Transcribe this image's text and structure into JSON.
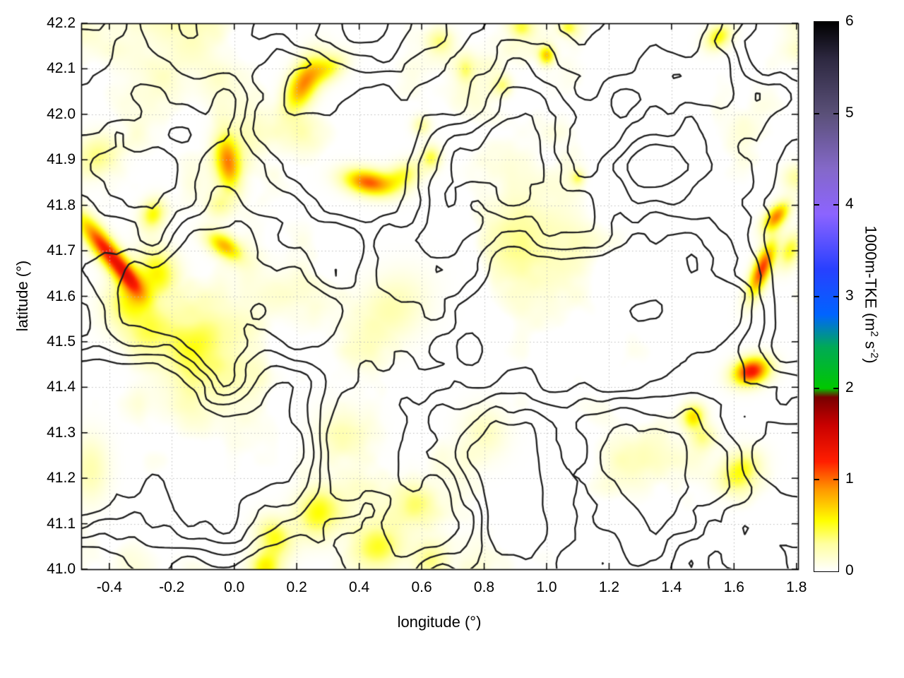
{
  "chart_data": {
    "type": "heatmap",
    "overlay": "contour",
    "title": "",
    "xlabel": "longitude (°)",
    "ylabel": "latitude (°)",
    "x_range": [
      -0.49,
      1.805
    ],
    "y_range": [
      41.0,
      42.2
    ],
    "grid": true,
    "x_tick_values": [
      -0.4,
      -0.2,
      0,
      0.2,
      0.4,
      0.6,
      0.8,
      1,
      1.2,
      1.4,
      1.6,
      1.8
    ],
    "x_tick_labels": [
      "-0.4",
      "-0.2",
      "0.0",
      "0.2",
      "0.4",
      "0.6",
      "0.8",
      "1.0",
      "1.2",
      "1.4",
      "1.6",
      "1.8"
    ],
    "y_tick_values": [
      41,
      41.1,
      41.2,
      41.3,
      41.4,
      41.5,
      41.6,
      41.7,
      41.8,
      41.9,
      42,
      42.1,
      42.2
    ],
    "y_tick_labels": [
      "41.0",
      "41.1",
      "41.2",
      "41.3",
      "41.4",
      "41.5",
      "41.6",
      "41.7",
      "41.8",
      "41.9",
      "42.0",
      "42.1",
      "42.2"
    ],
    "colorbar": {
      "label": "1000m-TKE (m² s⁻²)",
      "label_parts": {
        "prefix": "1000m-TKE (m",
        "sup1": "2",
        "mid": " s",
        "sup2": "-2",
        "suffix": ")"
      },
      "range": [
        0,
        6
      ],
      "tick_values": [
        0,
        1,
        2,
        3,
        4,
        5,
        6
      ],
      "tick_labels": [
        "0",
        "1",
        "2",
        "3",
        "4",
        "5",
        "6"
      ],
      "stops": [
        [
          0.0,
          "#ffffff"
        ],
        [
          0.3,
          "#ffffa0"
        ],
        [
          0.55,
          "#ffff00"
        ],
        [
          0.9,
          "#ff9600"
        ],
        [
          1.2,
          "#ff1e00"
        ],
        [
          1.6,
          "#c80000"
        ],
        [
          1.9,
          "#780000"
        ],
        [
          2.0,
          "#00c800"
        ],
        [
          2.45,
          "#00aa55"
        ],
        [
          2.8,
          "#0064ff"
        ],
        [
          3.3,
          "#2840ff"
        ],
        [
          3.9,
          "#8c64ff"
        ],
        [
          4.4,
          "#8468c8"
        ],
        [
          5.0,
          "#5a5078"
        ],
        [
          5.6,
          "#2d2840"
        ],
        [
          6.0,
          "#000000"
        ]
      ]
    },
    "hotspots": [
      {
        "lon": -0.415,
        "lat": 41.705,
        "amp": 1.2,
        "sx": 0.075,
        "sy": 0.02,
        "rot": -0.7
      },
      {
        "lon": -0.34,
        "lat": 41.645,
        "amp": 0.6,
        "sx": 0.045,
        "sy": 0.018,
        "rot": -0.7
      },
      {
        "lon": -0.33,
        "lat": 41.595,
        "amp": 0.55,
        "sx": 0.055,
        "sy": 0.04,
        "rot": 0.3
      },
      {
        "lon": -0.24,
        "lat": 41.655,
        "amp": 0.5,
        "sx": 0.045,
        "sy": 0.035,
        "rot": -0.5
      },
      {
        "lon": -0.28,
        "lat": 41.525,
        "amp": 0.3,
        "sx": 0.05,
        "sy": 0.035,
        "rot": 0
      },
      {
        "lon": -0.26,
        "lat": 41.78,
        "amp": 0.55,
        "sx": 0.028,
        "sy": 0.022,
        "rot": 0.4
      },
      {
        "lon": -0.44,
        "lat": 41.91,
        "amp": 0.35,
        "sx": 0.05,
        "sy": 0.03,
        "rot": 0.2
      },
      {
        "lon": -0.02,
        "lat": 41.895,
        "amp": 0.9,
        "sx": 0.028,
        "sy": 0.045,
        "rot": 0.25
      },
      {
        "lon": -0.05,
        "lat": 41.8,
        "amp": 0.3,
        "sx": 0.03,
        "sy": 0.02,
        "rot": 0
      },
      {
        "lon": -0.03,
        "lat": 41.71,
        "amp": 0.8,
        "sx": 0.042,
        "sy": 0.018,
        "rot": -0.35
      },
      {
        "lon": 0.22,
        "lat": 42.065,
        "amp": 0.9,
        "sx": 0.05,
        "sy": 0.028,
        "rot": 0.85
      },
      {
        "lon": 0.3,
        "lat": 42.1,
        "amp": 0.5,
        "sx": 0.04,
        "sy": 0.02,
        "rot": 0.3
      },
      {
        "lon": 0.43,
        "lat": 41.85,
        "amp": 1.05,
        "sx": 0.055,
        "sy": 0.019,
        "rot": -0.12
      },
      {
        "lon": 0.54,
        "lat": 41.865,
        "amp": 0.45,
        "sx": 0.04,
        "sy": 0.02,
        "rot": 0.2
      },
      {
        "lon": 0.63,
        "lat": 41.905,
        "amp": 0.45,
        "sx": 0.022,
        "sy": 0.018,
        "rot": 0
      },
      {
        "lon": 0.6,
        "lat": 41.975,
        "amp": 0.3,
        "sx": 0.02,
        "sy": 0.015,
        "rot": 0
      },
      {
        "lon": 1.0,
        "lat": 42.13,
        "amp": 0.75,
        "sx": 0.018,
        "sy": 0.015,
        "rot": 0
      },
      {
        "lon": 0.86,
        "lat": 42.065,
        "amp": 0.3,
        "sx": 0.02,
        "sy": 0.015,
        "rot": 0
      },
      {
        "lon": 1.55,
        "lat": 42.17,
        "amp": 0.55,
        "sx": 0.03,
        "sy": 0.018,
        "rot": 0.3
      },
      {
        "lon": 1.07,
        "lat": 42.19,
        "amp": 0.4,
        "sx": 0.02,
        "sy": 0.012,
        "rot": 0
      },
      {
        "lon": 0.66,
        "lat": 42.16,
        "amp": 0.35,
        "sx": 0.03,
        "sy": 0.02,
        "rot": 0
      },
      {
        "lon": 1.655,
        "lat": 41.435,
        "amp": 1.3,
        "sx": 0.04,
        "sy": 0.02,
        "rot": 0.15
      },
      {
        "lon": 1.69,
        "lat": 41.66,
        "amp": 1.15,
        "sx": 0.048,
        "sy": 0.018,
        "rot": 1.0
      },
      {
        "lon": 1.735,
        "lat": 41.775,
        "amp": 0.95,
        "sx": 0.032,
        "sy": 0.016,
        "rot": 0.55
      },
      {
        "lon": 1.78,
        "lat": 41.7,
        "amp": 0.5,
        "sx": 0.03,
        "sy": 0.02,
        "rot": 0.9
      },
      {
        "lon": 1.47,
        "lat": 41.335,
        "amp": 0.65,
        "sx": 0.025,
        "sy": 0.018,
        "rot": 0.2
      },
      {
        "lon": 1.62,
        "lat": 41.215,
        "amp": 0.55,
        "sx": 0.045,
        "sy": 0.028,
        "rot": 0.25
      },
      {
        "lon": 1.5,
        "lat": 41.29,
        "amp": 0.35,
        "sx": 0.03,
        "sy": 0.02,
        "rot": 0
      },
      {
        "lon": 0.27,
        "lat": 41.125,
        "amp": 0.55,
        "sx": 0.05,
        "sy": 0.038,
        "rot": 0.2
      },
      {
        "lon": 0.13,
        "lat": 41.07,
        "amp": 0.5,
        "sx": 0.04,
        "sy": 0.028,
        "rot": -0.3
      },
      {
        "lon": 0.1,
        "lat": 41.005,
        "amp": 0.55,
        "sx": 0.035,
        "sy": 0.025,
        "rot": 0
      },
      {
        "lon": 0.46,
        "lat": 41.05,
        "amp": 0.5,
        "sx": 0.055,
        "sy": 0.035,
        "rot": 0.1
      },
      {
        "lon": 0.63,
        "lat": 41.02,
        "amp": 0.35,
        "sx": 0.04,
        "sy": 0.03,
        "rot": 0
      },
      {
        "lon": 0.58,
        "lat": 41.14,
        "amp": 0.3,
        "sx": 0.05,
        "sy": 0.035,
        "rot": 0
      },
      {
        "lon": 1.1,
        "lat": 41.86,
        "amp": 0.35,
        "sx": 0.015,
        "sy": 0.012,
        "rot": 0
      },
      {
        "lon": 0.5,
        "lat": 41.57,
        "amp": 0.25,
        "sx": 0.08,
        "sy": 0.05,
        "rot": 0.3
      },
      {
        "lon": -0.12,
        "lat": 41.5,
        "amp": 0.25,
        "sx": 0.06,
        "sy": 0.05,
        "rot": 0
      },
      {
        "lon": 0.35,
        "lat": 41.3,
        "amp": 0.2,
        "sx": 0.06,
        "sy": 0.04,
        "rot": 0
      },
      {
        "lon": 0.8,
        "lat": 41.3,
        "amp": 0.2,
        "sx": 0.05,
        "sy": 0.04,
        "rot": 0
      },
      {
        "lon": -0.46,
        "lat": 41.22,
        "amp": 0.25,
        "sx": 0.04,
        "sy": 0.05,
        "rot": 0
      },
      {
        "lon": 0.92,
        "lat": 42.19,
        "amp": 0.35,
        "sx": 0.025,
        "sy": 0.015,
        "rot": 0
      },
      {
        "lon": 0.74,
        "lat": 42.1,
        "amp": 0.3,
        "sx": 0.02,
        "sy": 0.02,
        "rot": 0
      },
      {
        "lon": 1.8,
        "lat": 41.86,
        "amp": 0.3,
        "sx": 0.03,
        "sy": 0.02,
        "rot": 0
      }
    ],
    "faint_field": {
      "seed": 7,
      "freq_x": 6.5,
      "freq_y": 5.0,
      "threshold": 0.6,
      "gain": 1.0
    },
    "contour_field": {
      "seed": 41,
      "freq_x": 5.0,
      "freq_y": 3.8,
      "levels": [
        0.36,
        0.47,
        0.58,
        0.69
      ],
      "color": "#1f1f1f",
      "line_width": 2.3
    },
    "grid_color": "#bdbdbd",
    "frame_color": "#000000"
  }
}
